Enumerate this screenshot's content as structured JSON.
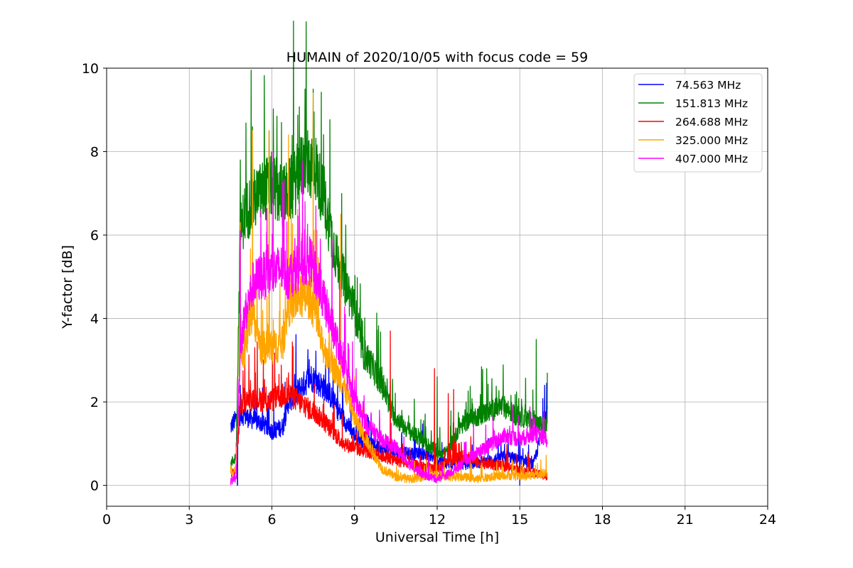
{
  "chart_data": {
    "type": "line",
    "title": "HUMAIN of 2020/10/05 with focus code = 59",
    "xlabel": "Universal Time [h]",
    "ylabel": "Y-factor [dB]",
    "xlim": [
      0,
      24
    ],
    "ylim": [
      -0.5,
      10
    ],
    "xticks": [
      0,
      3,
      6,
      9,
      12,
      15,
      18,
      21,
      24
    ],
    "yticks": [
      0,
      2,
      4,
      6,
      8,
      10
    ],
    "grid": true,
    "legend_position": "top-right",
    "series": [
      {
        "name": " 74.563 MHz",
        "color": "#0000ff",
        "x": [
          4.5,
          4.7,
          4.9,
          5.2,
          5.6,
          6.0,
          6.4,
          6.6,
          7.0,
          7.4,
          7.6,
          8.0,
          8.4,
          8.8,
          9.0,
          9.5,
          10.0,
          10.5,
          11.0,
          11.5,
          12.0,
          12.5,
          13.0,
          13.5,
          14.0,
          14.5,
          15.0,
          15.5,
          16.0
        ],
        "y": [
          1.4,
          1.6,
          1.7,
          1.6,
          1.5,
          1.3,
          1.4,
          2.0,
          2.3,
          2.6,
          2.5,
          2.3,
          1.8,
          1.4,
          1.2,
          1.0,
          0.9,
          0.8,
          0.75,
          0.75,
          0.6,
          0.5,
          0.5,
          0.55,
          0.6,
          0.7,
          0.6,
          0.5,
          1.8
        ],
        "spikes": [
          [
            4.75,
            0.0
          ],
          [
            4.85,
            2.4
          ],
          [
            7.3,
            2.9
          ],
          [
            11.2,
            1.1
          ],
          [
            15.0,
            0.0
          ],
          [
            15.9,
            2.4
          ]
        ]
      },
      {
        "name": "151.813 MHz",
        "color": "#008000",
        "x": [
          4.5,
          4.7,
          4.85,
          5.0,
          5.3,
          5.6,
          6.0,
          6.4,
          6.8,
          7.2,
          7.6,
          8.0,
          8.4,
          8.8,
          9.0,
          9.3,
          9.6,
          10.0,
          10.4,
          10.8,
          11.2,
          11.6,
          12.0,
          12.4,
          12.8,
          13.2,
          13.6,
          14.0,
          14.4,
          14.8,
          15.2,
          15.6,
          16.0
        ],
        "y": [
          0.5,
          0.7,
          6.0,
          6.5,
          6.8,
          7.0,
          7.2,
          6.9,
          7.2,
          7.8,
          7.6,
          6.5,
          5.3,
          4.6,
          4.2,
          3.2,
          2.9,
          2.4,
          1.7,
          1.4,
          1.2,
          1.0,
          0.8,
          0.8,
          1.4,
          1.6,
          1.7,
          1.8,
          1.9,
          1.7,
          1.6,
          1.5,
          1.4
        ],
        "spikes": [
          [
            4.85,
            7.8
          ],
          [
            5.3,
            8.6
          ],
          [
            5.9,
            8.5
          ],
          [
            7.2,
            9.5
          ],
          [
            7.5,
            9.5
          ],
          [
            10.3,
            2.5
          ],
          [
            12.0,
            2.6
          ],
          [
            13.8,
            2.8
          ],
          [
            15.6,
            3.5
          ],
          [
            16.0,
            2.7
          ]
        ]
      },
      {
        "name": "264.688 MHz",
        "color": "#ff0000",
        "x": [
          4.5,
          4.7,
          4.85,
          5.0,
          5.4,
          5.8,
          6.2,
          6.6,
          7.0,
          7.4,
          7.8,
          8.2,
          8.6,
          9.0,
          9.5,
          10.0,
          10.5,
          11.0,
          11.5,
          12.0,
          12.5,
          13.0,
          13.5,
          14.0,
          14.5,
          15.0,
          15.5,
          16.0
        ],
        "y": [
          0.3,
          0.35,
          1.9,
          2.0,
          2.1,
          2.0,
          2.1,
          2.2,
          2.0,
          1.8,
          1.6,
          1.3,
          1.0,
          0.9,
          0.8,
          0.7,
          0.6,
          0.5,
          0.45,
          0.4,
          0.6,
          0.7,
          0.55,
          0.5,
          0.45,
          0.35,
          0.3,
          0.2
        ],
        "spikes": [
          [
            5.4,
            2.7
          ],
          [
            6.6,
            2.7
          ],
          [
            10.3,
            3.7
          ],
          [
            11.9,
            2.8
          ],
          [
            12.4,
            2.2
          ],
          [
            12.6,
            2.3
          ]
        ]
      },
      {
        "name": "325.000 MHz",
        "color": "#ffa500",
        "x": [
          4.5,
          4.7,
          4.85,
          5.0,
          5.3,
          5.6,
          6.0,
          6.4,
          6.6,
          7.0,
          7.4,
          7.6,
          7.8,
          8.2,
          8.6,
          9.0,
          9.5,
          10.0,
          10.5,
          11.0,
          11.5,
          12.0,
          12.5,
          13.0,
          13.5,
          14.0,
          14.5,
          15.0,
          15.5,
          16.0
        ],
        "y": [
          0.3,
          0.4,
          3.3,
          3.2,
          4.2,
          3.3,
          3.3,
          3.4,
          4.3,
          4.5,
          4.5,
          4.0,
          3.4,
          2.9,
          2.4,
          1.6,
          1.0,
          0.4,
          0.2,
          0.15,
          0.2,
          0.25,
          0.2,
          0.2,
          0.15,
          0.2,
          0.25,
          0.2,
          0.25,
          0.3
        ],
        "spikes": [
          [
            4.85,
            6.3
          ],
          [
            5.3,
            8.5
          ],
          [
            5.9,
            8.5
          ],
          [
            6.6,
            8.4
          ],
          [
            7.5,
            9.4
          ],
          [
            8.5,
            6.5
          ],
          [
            9.0,
            2.6
          ]
        ]
      },
      {
        "name": "407.000 MHz",
        "color": "#ff00ff",
        "x": [
          4.5,
          4.7,
          4.85,
          5.0,
          5.3,
          5.6,
          6.0,
          6.4,
          6.6,
          7.0,
          7.4,
          7.6,
          7.8,
          8.2,
          8.6,
          9.0,
          9.5,
          10.0,
          10.5,
          11.0,
          11.5,
          12.0,
          12.5,
          13.0,
          13.5,
          14.0,
          14.5,
          15.0,
          15.5,
          16.0
        ],
        "y": [
          0.1,
          0.15,
          3.3,
          4.0,
          4.8,
          5.0,
          5.1,
          5.2,
          5.0,
          5.3,
          5.4,
          5.0,
          4.6,
          3.8,
          2.9,
          2.0,
          1.4,
          1.1,
          0.9,
          0.5,
          0.25,
          0.15,
          0.3,
          0.6,
          0.8,
          1.0,
          1.2,
          1.1,
          1.25,
          1.1
        ],
        "spikes": [
          [
            4.85,
            6.1
          ],
          [
            5.6,
            6.6
          ],
          [
            6.4,
            6.5
          ],
          [
            7.2,
            6.8
          ],
          [
            7.6,
            6.7
          ]
        ]
      }
    ]
  }
}
